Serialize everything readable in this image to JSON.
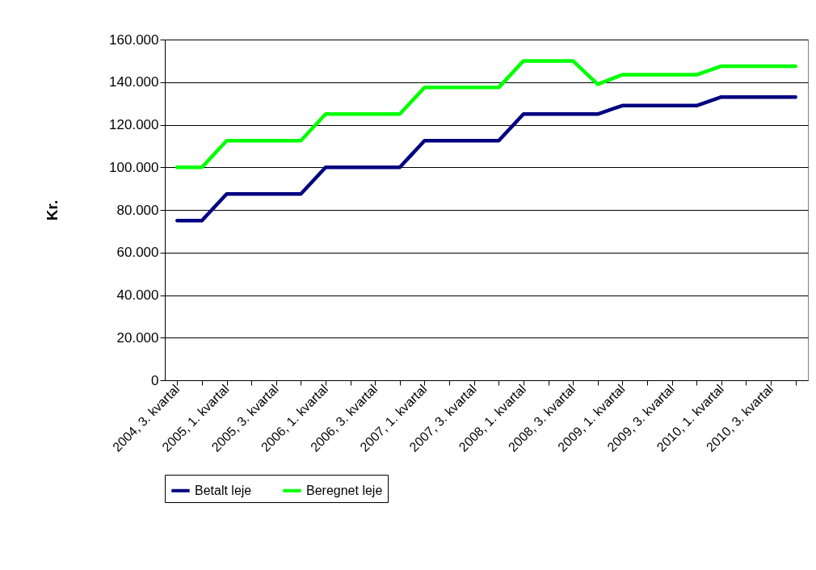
{
  "chart_data": {
    "type": "line",
    "ylabel": "Kr.",
    "categories": [
      "2004, 3. kvartal",
      null,
      "2005, 1. kvartal",
      null,
      "2005, 3. kvartal",
      null,
      "2006, 1. kvartal",
      null,
      "2006, 3. kvartal",
      null,
      "2007, 1. kvartal",
      null,
      "2007, 3. kvartal",
      null,
      "2008, 1. kvartal",
      null,
      "2008, 3. kvartal",
      null,
      "2009, 1. kvartal",
      null,
      "2009, 3. kvartal",
      null,
      "2010, 1. kvartal",
      null,
      "2010, 3. kvartal",
      null
    ],
    "series": [
      {
        "name": "Betalt leje",
        "color": "#000080",
        "values": [
          75000,
          75000,
          87500,
          87500,
          87500,
          87500,
          100000,
          100000,
          100000,
          100000,
          112500,
          112500,
          112500,
          112500,
          125000,
          125000,
          125000,
          125000,
          129000,
          129000,
          129000,
          129000,
          133000,
          133000,
          133000,
          133000
        ]
      },
      {
        "name": "Beregnet leje",
        "color": "#00ff00",
        "values": [
          100000,
          100000,
          112500,
          112500,
          112500,
          112500,
          125000,
          125000,
          125000,
          125000,
          137500,
          137500,
          137500,
          137500,
          150000,
          150000,
          150000,
          139000,
          143500,
          143500,
          143500,
          143500,
          147500,
          147500,
          147500,
          147500
        ]
      }
    ],
    "ylim": [
      0,
      160000
    ],
    "yticks": [
      {
        "value": 0,
        "label": "0"
      },
      {
        "value": 20000,
        "label": "20.000"
      },
      {
        "value": 40000,
        "label": "40.000"
      },
      {
        "value": 60000,
        "label": "60.000"
      },
      {
        "value": 80000,
        "label": "80.000"
      },
      {
        "value": 100000,
        "label": "100.000"
      },
      {
        "value": 120000,
        "label": "120.000"
      },
      {
        "value": 140000,
        "label": "140.000"
      },
      {
        "value": 160000,
        "label": "160.000"
      }
    ],
    "grid": "y",
    "legend": "bottom",
    "marker": "none",
    "line_style": "solid"
  }
}
